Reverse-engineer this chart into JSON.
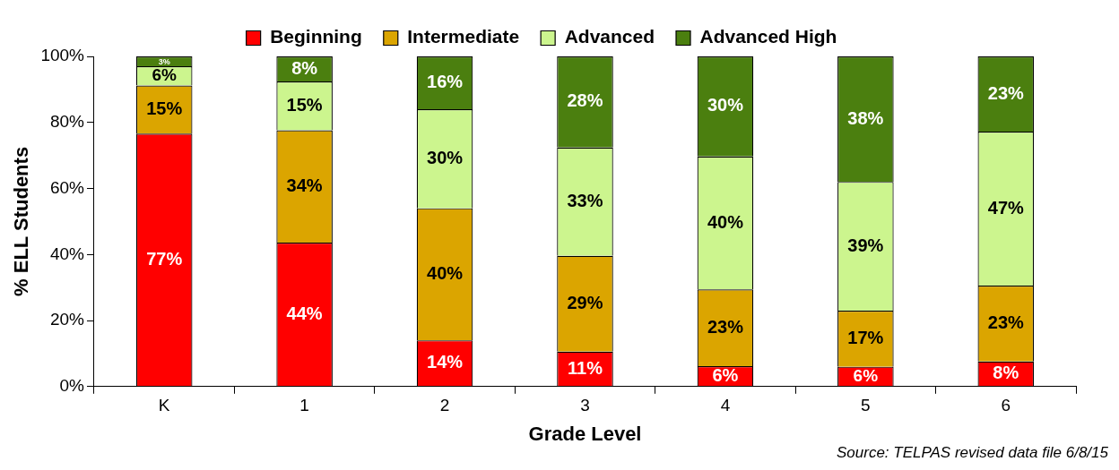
{
  "chart_data": {
    "type": "bar",
    "stacked": true,
    "xlabel": "Grade Level",
    "ylabel": "% ELL Students",
    "categories": [
      "K",
      "1",
      "2",
      "3",
      "4",
      "5",
      "6"
    ],
    "series": [
      {
        "name": "Beginning",
        "color": "#ff0000",
        "values": [
          76.6,
          43.6,
          14,
          10.6,
          6.2,
          6,
          7.6
        ],
        "value_labels": [
          "77%",
          "44%",
          "14%",
          "11%",
          "6%",
          "6%",
          "8%"
        ]
      },
      {
        "name": "Intermediate",
        "color": "#dba500",
        "values": [
          14.6,
          34,
          40,
          29,
          23.2,
          17,
          23
        ],
        "value_labels": [
          "15%",
          "34%",
          "40%",
          "29%",
          "23%",
          "17%",
          "23%"
        ]
      },
      {
        "name": "Advanced",
        "color": "#ccf58e",
        "values": [
          5.8,
          14.8,
          30,
          32.8,
          40.3,
          39,
          46.6
        ],
        "value_labels": [
          "6%",
          "15%",
          "30%",
          "33%",
          "40%",
          "39%",
          "47%"
        ]
      },
      {
        "name": "Advanced High",
        "color": "#4b7f0f",
        "values": [
          3,
          7.6,
          16,
          27.6,
          30.3,
          38,
          22.8
        ],
        "value_labels": [
          "3%",
          "8%",
          "16%",
          "28%",
          "30%",
          "38%",
          "23%"
        ]
      }
    ],
    "ylim": [
      0,
      100
    ],
    "yticks": [
      {
        "value": 0,
        "label": "0%"
      },
      {
        "value": 20,
        "label": "20%"
      },
      {
        "value": 40,
        "label": "40%"
      },
      {
        "value": 60,
        "label": "60%"
      },
      {
        "value": 80,
        "label": "80%"
      },
      {
        "value": 100,
        "label": "100%"
      }
    ],
    "grid": false,
    "legend": "top",
    "annotations": [
      "Source: TELPAS revised data file 6/8/15"
    ]
  }
}
